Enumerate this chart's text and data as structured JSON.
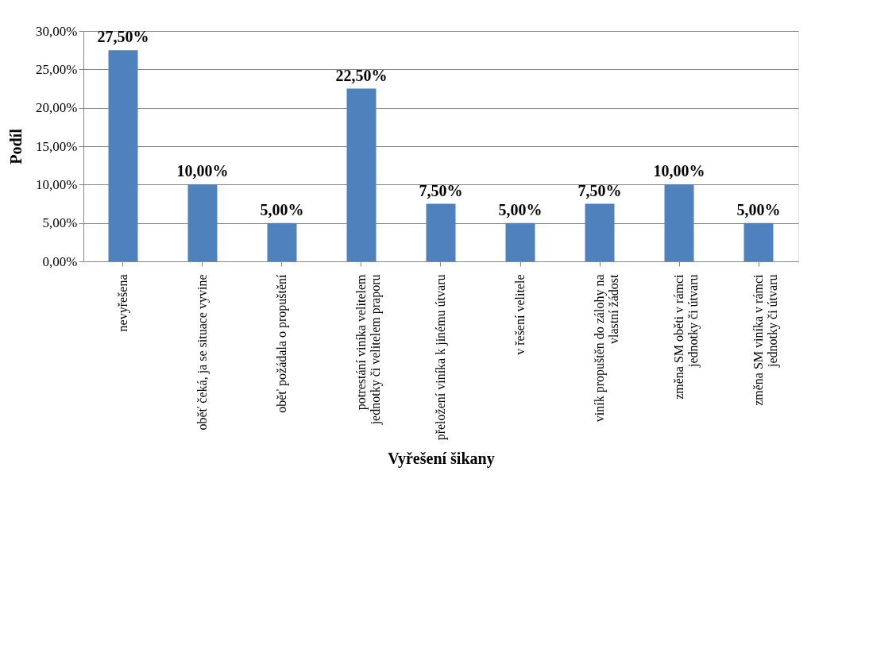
{
  "chart_data": {
    "type": "bar",
    "xlabel": "Vyřešení šikany",
    "ylabel": "Podíl",
    "categories": [
      "nevyřešena",
      "oběť čeká, ja se situace vyvine",
      "oběť požádala o propuštění",
      "potrestání viníka velitelem jednotky či velitelem praporu",
      "přeložení viníka k jinému útvaru",
      "v řešení velitele",
      "viník propuštěn do zálohy na vlastní žádost",
      "změna SM oběti v rámci jednotky či útvaru",
      "změna SM viníka v rámci jednotky či útvaru"
    ],
    "values": [
      27.5,
      10,
      5,
      22.5,
      7.5,
      5,
      7.5,
      10,
      5
    ],
    "value_labels": [
      "27,50%",
      "10,00%",
      "5,00%",
      "22,50%",
      "7,50%",
      "5,00%",
      "7,50%",
      "10,00%",
      "5,00%"
    ],
    "color": "#4f81bd",
    "ylim": [
      0,
      30
    ],
    "yticks": [
      {
        "value": 0,
        "label": "0,00%"
      },
      {
        "value": 5,
        "label": "5,00%"
      },
      {
        "value": 10,
        "label": "10,00%"
      },
      {
        "value": 15,
        "label": "15,00%"
      },
      {
        "value": 20,
        "label": "20,00%"
      },
      {
        "value": 25,
        "label": "25,00%"
      },
      {
        "value": 30,
        "label": "30,00%"
      }
    ],
    "grid": "y"
  }
}
